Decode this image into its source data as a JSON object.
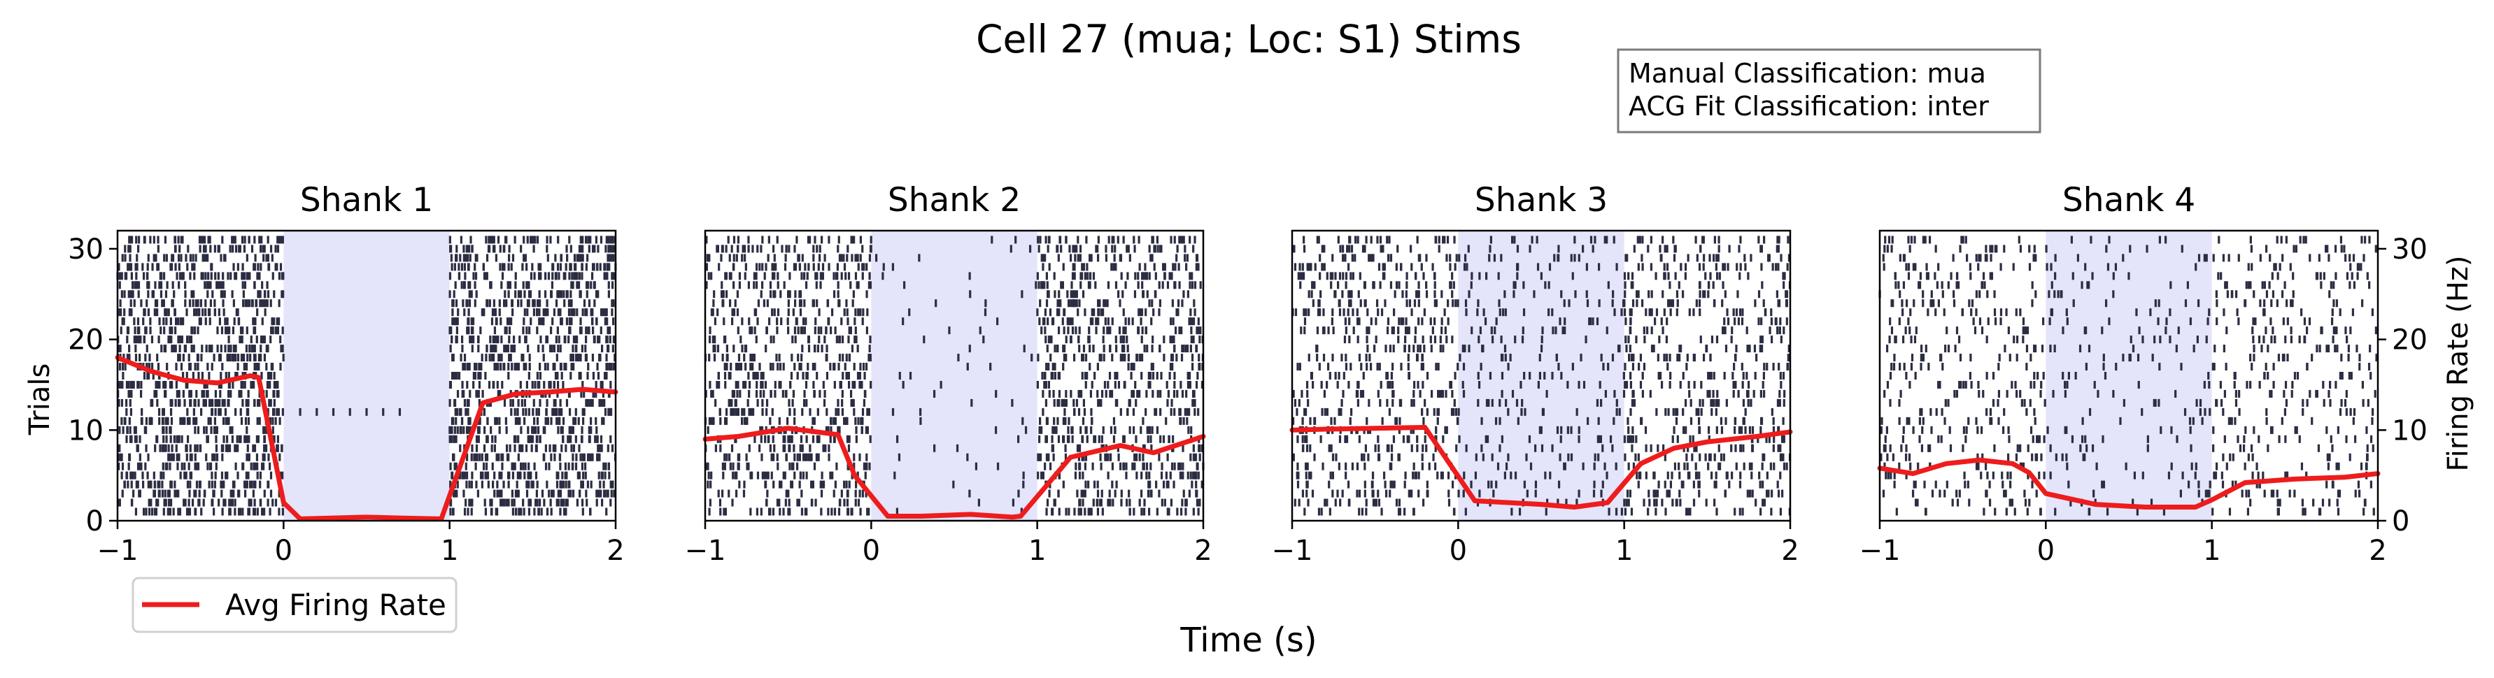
{
  "title": "Cell 27 (mua; Loc: S1) Stims",
  "classification_box": {
    "line1": "Manual Classification: mua",
    "line2": "ACG Fit Classification: inter"
  },
  "legend": {
    "label": "Avg Firing Rate",
    "color": "#ee1c1c"
  },
  "xlabel": "Time (s)",
  "ylabel_left": "Trials",
  "ylabel_right": "Firing Rate (Hz)",
  "colors": {
    "raster": "#2b2d42",
    "stim_shade": "#e4e4fb",
    "rate_line": "#ee1c1c"
  },
  "chart_data": [
    {
      "type": "raster_with_line",
      "title": "Shank 1",
      "x_ticks": [
        "−1",
        "0",
        "1",
        "2"
      ],
      "y_ticks": [
        "0",
        "10",
        "20",
        "30"
      ],
      "xlim": [
        -1,
        2
      ],
      "ylim": [
        0,
        32
      ],
      "stim_window": [
        0,
        1
      ],
      "trials": 31,
      "raster_density": {
        "pre": 38,
        "stim": 0,
        "post": 38
      },
      "stim_row_spikes": {
        "trial": 12,
        "times": [
          0.1,
          0.2,
          0.3,
          0.4,
          0.5,
          0.6,
          0.7
        ]
      },
      "avg_firing_rate": {
        "x": [
          -1,
          -0.8,
          -0.6,
          -0.4,
          -0.2,
          -0.15,
          0.0,
          0.1,
          0.3,
          0.5,
          0.7,
          0.95,
          1.2,
          1.4,
          1.6,
          1.8,
          2.0
        ],
        "y": [
          18,
          16.5,
          15.5,
          15.2,
          16,
          15.8,
          2,
          0.2,
          0.3,
          0.4,
          0.3,
          0.2,
          13,
          14,
          14.2,
          14.5,
          14.2
        ]
      }
    },
    {
      "type": "raster_with_line",
      "title": "Shank 2",
      "x_ticks": [
        "−1",
        "0",
        "1",
        "2"
      ],
      "y_ticks": [
        "0",
        "10",
        "20",
        "30"
      ],
      "xlim": [
        -1,
        2
      ],
      "ylim": [
        0,
        32
      ],
      "stim_window": [
        0,
        1
      ],
      "trials": 31,
      "raster_density": {
        "pre": 26,
        "stim": 2,
        "post": 26
      },
      "avg_firing_rate": {
        "x": [
          -1,
          -0.8,
          -0.5,
          -0.2,
          -0.1,
          0.1,
          0.3,
          0.6,
          0.85,
          0.9,
          1.2,
          1.5,
          1.7,
          2.0
        ],
        "y": [
          9,
          9.3,
          10.2,
          9.5,
          5,
          0.5,
          0.5,
          0.7,
          0.4,
          0.5,
          7,
          8.3,
          7.5,
          9.3
        ]
      }
    },
    {
      "type": "raster_with_line",
      "title": "Shank 3",
      "x_ticks": [
        "−1",
        "0",
        "1",
        "2"
      ],
      "y_ticks": [
        "0",
        "10",
        "20",
        "30"
      ],
      "xlim": [
        -1,
        2
      ],
      "ylim": [
        0,
        32
      ],
      "stim_window": [
        0,
        1
      ],
      "trials": 31,
      "raster_density": {
        "pre": 19,
        "stim": 9,
        "post": 19
      },
      "avg_firing_rate": {
        "x": [
          -1,
          -0.8,
          -0.5,
          -0.2,
          0.1,
          0.3,
          0.5,
          0.7,
          0.9,
          1.1,
          1.3,
          1.5,
          1.8,
          2.0
        ],
        "y": [
          10,
          10.1,
          10.2,
          10.3,
          2.2,
          2.0,
          1.8,
          1.5,
          2.0,
          6.3,
          8.0,
          8.7,
          9.3,
          9.8
        ]
      }
    },
    {
      "type": "raster_with_line",
      "title": "Shank 4",
      "x_ticks": [
        "−1",
        "0",
        "1",
        "2"
      ],
      "y_ticks": [
        "0",
        "10",
        "20",
        "30"
      ],
      "xlim": [
        -1,
        2
      ],
      "ylim": [
        0,
        32
      ],
      "stim_window": [
        0,
        1
      ],
      "trials": 31,
      "raster_density": {
        "pre": 12,
        "stim": 6,
        "post": 12
      },
      "avg_firing_rate": {
        "x": [
          -1,
          -0.8,
          -0.6,
          -0.4,
          -0.2,
          -0.1,
          0.0,
          0.3,
          0.6,
          0.9,
          1.0,
          1.2,
          1.5,
          1.8,
          2.0
        ],
        "y": [
          5.8,
          5.2,
          6.3,
          6.7,
          6.3,
          5.3,
          3,
          1.8,
          1.5,
          1.5,
          2.3,
          4.2,
          4.6,
          4.8,
          5.2
        ]
      }
    }
  ]
}
